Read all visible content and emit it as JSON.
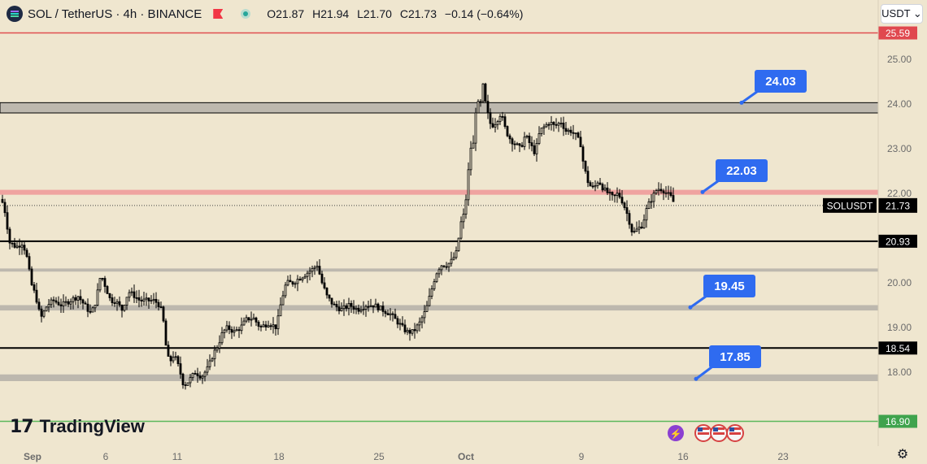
{
  "header": {
    "title": "SOL / TetherUS · 4h · BINANCE",
    "ohlc": {
      "o": "O21.87",
      "h": "H21.94",
      "l": "L21.70",
      "c": "C21.73",
      "change": "−0.14 (−0.64%)"
    }
  },
  "currency_selector": {
    "label": "USDT ⌄"
  },
  "branding": {
    "logo_mark": "17",
    "logo_text": "TradingView"
  },
  "icons": {
    "settings": "gear-icon",
    "lightning": "lightning-icon",
    "flag": "us-flag-icon"
  },
  "colors": {
    "background": "#efe6cf",
    "candle": "#000000",
    "red_line": "#e05050",
    "green_line": "#5cb85c",
    "zone": "#bdb8ae",
    "pink_zone": "#efa3a0",
    "callout": "#2f6bf0",
    "label_dark": "#000000",
    "label_red": "#e0484f",
    "label_green": "#3fa34d"
  },
  "chart_data": {
    "type": "candlestick",
    "symbol": "SOLUSDT",
    "last_price": "21.73",
    "y_range": [
      16.75,
      25.85
    ],
    "y_ticks": [
      "25.00",
      "24.00",
      "23.00",
      "22.00",
      "20.00",
      "19.00",
      "18.00"
    ],
    "x_ticks": [
      "Sep",
      "6",
      "11",
      "18",
      "25",
      "Oct",
      "9",
      "16",
      "23"
    ],
    "horizontal_lines": [
      {
        "value": 25.59,
        "label": "25.59",
        "style": "red"
      },
      {
        "value": 20.93,
        "label": "20.93",
        "style": "dark"
      },
      {
        "value": 18.54,
        "label": "18.54",
        "style": "dark"
      },
      {
        "value": 16.9,
        "label": "16.90",
        "style": "green"
      }
    ],
    "zones": [
      {
        "from": 23.8,
        "to": 24.03,
        "style": "gray-boxed"
      },
      {
        "from": 21.97,
        "to": 22.08,
        "style": "pink"
      },
      {
        "from": 20.25,
        "to": 20.32,
        "style": "gray-thin"
      },
      {
        "from": 19.38,
        "to": 19.5,
        "style": "gray"
      },
      {
        "from": 17.8,
        "to": 17.95,
        "style": "gray"
      }
    ],
    "callouts": [
      {
        "label": "24.03",
        "value": 24.03
      },
      {
        "label": "22.03",
        "value": 22.03
      },
      {
        "label": "19.45",
        "value": 19.45
      },
      {
        "label": "17.85",
        "value": 17.85
      }
    ],
    "price_path": [
      [
        0,
        22.0
      ],
      [
        6,
        21.6
      ],
      [
        12,
        20.9
      ],
      [
        20,
        20.8
      ],
      [
        28,
        20.9
      ],
      [
        34,
        20.5
      ],
      [
        38,
        20.0
      ],
      [
        44,
        19.7
      ],
      [
        50,
        19.2
      ],
      [
        58,
        19.5
      ],
      [
        66,
        19.6
      ],
      [
        76,
        19.5
      ],
      [
        86,
        19.6
      ],
      [
        96,
        19.7
      ],
      [
        104,
        19.5
      ],
      [
        112,
        19.3
      ],
      [
        118,
        19.6
      ],
      [
        124,
        20.2
      ],
      [
        130,
        19.9
      ],
      [
        136,
        19.6
      ],
      [
        142,
        19.6
      ],
      [
        150,
        19.4
      ],
      [
        158,
        19.8
      ],
      [
        166,
        19.7
      ],
      [
        172,
        19.6
      ],
      [
        180,
        19.6
      ],
      [
        190,
        19.6
      ],
      [
        196,
        19.5
      ],
      [
        200,
        19.3
      ],
      [
        204,
        18.6
      ],
      [
        208,
        18.2
      ],
      [
        214,
        18.4
      ],
      [
        220,
        18.1
      ],
      [
        226,
        17.7
      ],
      [
        232,
        17.8
      ],
      [
        240,
        18.0
      ],
      [
        248,
        17.9
      ],
      [
        256,
        18.1
      ],
      [
        262,
        18.4
      ],
      [
        268,
        18.6
      ],
      [
        274,
        18.9
      ],
      [
        280,
        19.0
      ],
      [
        288,
        18.9
      ],
      [
        296,
        19.0
      ],
      [
        304,
        19.2
      ],
      [
        312,
        19.2
      ],
      [
        320,
        19.0
      ],
      [
        330,
        19.1
      ],
      [
        340,
        19.0
      ],
      [
        346,
        19.6
      ],
      [
        352,
        20.0
      ],
      [
        360,
        20.0
      ],
      [
        368,
        20.1
      ],
      [
        376,
        20.2
      ],
      [
        384,
        20.3
      ],
      [
        390,
        20.4
      ],
      [
        396,
        20.0
      ],
      [
        402,
        19.7
      ],
      [
        410,
        19.5
      ],
      [
        420,
        19.4
      ],
      [
        430,
        19.5
      ],
      [
        440,
        19.4
      ],
      [
        450,
        19.5
      ],
      [
        460,
        19.5
      ],
      [
        470,
        19.4
      ],
      [
        480,
        19.3
      ],
      [
        490,
        19.1
      ],
      [
        500,
        18.9
      ],
      [
        508,
        18.9
      ],
      [
        516,
        19.1
      ],
      [
        524,
        19.4
      ],
      [
        530,
        19.8
      ],
      [
        536,
        20.2
      ],
      [
        542,
        20.4
      ],
      [
        550,
        20.4
      ],
      [
        556,
        20.5
      ],
      [
        562,
        20.7
      ],
      [
        566,
        21.3
      ],
      [
        570,
        21.5
      ],
      [
        574,
        22.0
      ],
      [
        578,
        23.0
      ],
      [
        582,
        23.1
      ],
      [
        586,
        24.1
      ],
      [
        590,
        23.9
      ],
      [
        594,
        24.4
      ],
      [
        598,
        23.9
      ],
      [
        604,
        23.5
      ],
      [
        610,
        23.6
      ],
      [
        616,
        23.8
      ],
      [
        622,
        23.4
      ],
      [
        628,
        23.2
      ],
      [
        634,
        23.1
      ],
      [
        640,
        23.0
      ],
      [
        646,
        23.3
      ],
      [
        652,
        23.1
      ],
      [
        658,
        22.9
      ],
      [
        664,
        23.4
      ],
      [
        670,
        23.5
      ],
      [
        676,
        23.6
      ],
      [
        682,
        23.5
      ],
      [
        690,
        23.6
      ],
      [
        696,
        23.4
      ],
      [
        702,
        23.4
      ],
      [
        708,
        23.3
      ],
      [
        714,
        23.1
      ],
      [
        718,
        22.6
      ],
      [
        724,
        22.2
      ],
      [
        730,
        22.1
      ],
      [
        736,
        22.3
      ],
      [
        742,
        22.1
      ],
      [
        748,
        22.0
      ],
      [
        754,
        21.9
      ],
      [
        760,
        22.0
      ],
      [
        766,
        21.8
      ],
      [
        772,
        21.5
      ],
      [
        778,
        21.1
      ],
      [
        784,
        21.2
      ],
      [
        790,
        21.3
      ],
      [
        796,
        21.7
      ],
      [
        802,
        21.9
      ],
      [
        808,
        22.1
      ],
      [
        814,
        22.1
      ],
      [
        820,
        22.0
      ],
      [
        826,
        21.9
      ],
      [
        830,
        21.73
      ]
    ]
  }
}
